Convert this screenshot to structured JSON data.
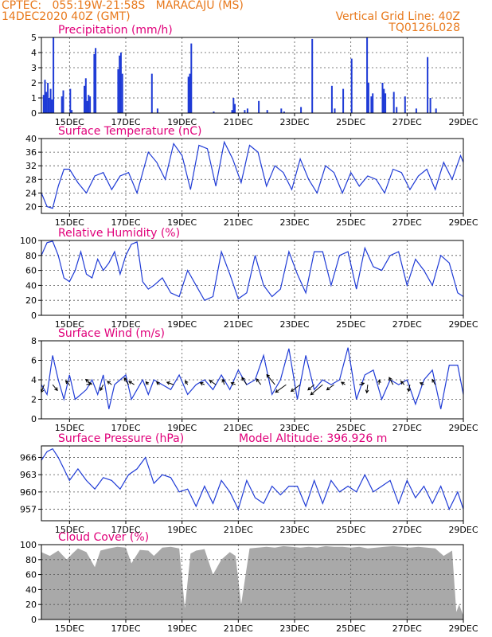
{
  "header": {
    "line1": "CPTEC:   055:19W-21:58S   MARACAJU (MS)",
    "line2": "14DEC2020 40Z (GMT)",
    "right1": "Vertical Grid Line: 40Z",
    "right2": "TQ0126L028"
  },
  "colors": {
    "header": "#e8791c",
    "title": "#e0007a",
    "series": "#1f3bd6",
    "cloud": "#a9a9a9",
    "arrow": "#000000"
  },
  "x_ticks": [
    "15DEC",
    "17DEC",
    "19DEC",
    "21DEC",
    "23DEC",
    "25DEC",
    "27DEC",
    "29DEC"
  ],
  "chart_data": [
    {
      "id": "precip",
      "type": "bar",
      "title": "Precipitation (mm/h)",
      "ylim": [
        0,
        5
      ],
      "yticks": [
        "0",
        "1",
        "2",
        "3",
        "4",
        "5"
      ],
      "x_range_days": [
        14,
        29
      ],
      "x": [
        14.05,
        14.1,
        14.15,
        14.2,
        14.25,
        14.3,
        14.35,
        14.4,
        14.7,
        14.75,
        15.0,
        15.05,
        15.5,
        15.55,
        15.6,
        15.65,
        15.7,
        15.85,
        15.9,
        16.7,
        16.75,
        16.8,
        16.85,
        17.9,
        18.1,
        19.2,
        19.25,
        19.3,
        20.1,
        20.75,
        20.8,
        20.85,
        21.2,
        21.3,
        21.7,
        22.0,
        22.5,
        22.6,
        23.2,
        23.6,
        24.3,
        24.4,
        24.7,
        25.0,
        25.55,
        25.6,
        25.7,
        25.75,
        26.1,
        26.15,
        26.2,
        26.5,
        26.6,
        26.9,
        27.3,
        27.7,
        27.8,
        28.0
      ],
      "values": [
        1.2,
        2.2,
        1.4,
        2.0,
        1.0,
        1.6,
        0.9,
        5.0,
        1.1,
        1.5,
        1.6,
        0.2,
        1.8,
        2.3,
        0.8,
        1.2,
        1.1,
        3.9,
        4.3,
        2.9,
        3.8,
        4.0,
        2.6,
        2.6,
        0.3,
        2.4,
        2.6,
        4.6,
        0.1,
        0.2,
        1.0,
        0.6,
        0.2,
        0.3,
        0.8,
        0.2,
        0.3,
        0.1,
        0.4,
        4.9,
        1.8,
        0.3,
        1.6,
        3.6,
        5.0,
        2.0,
        1.1,
        1.3,
        2.0,
        1.6,
        1.3,
        1.4,
        0.4,
        1.1,
        0.3,
        3.7,
        1.0,
        0.3
      ]
    },
    {
      "id": "temp",
      "type": "line",
      "title": "Surface Temperature (nC)",
      "ylim": [
        18,
        40
      ],
      "yticks": [
        "20",
        "24",
        "28",
        "32",
        "36",
        "40"
      ],
      "ytick_values": [
        20,
        24,
        28,
        32,
        36,
        40
      ],
      "x": [
        14.0,
        14.2,
        14.4,
        14.6,
        14.8,
        15.0,
        15.3,
        15.6,
        15.9,
        16.2,
        16.5,
        16.8,
        17.1,
        17.4,
        17.8,
        18.1,
        18.4,
        18.7,
        19.0,
        19.3,
        19.6,
        19.9,
        20.2,
        20.5,
        20.8,
        21.1,
        21.4,
        21.7,
        22.0,
        22.3,
        22.6,
        22.9,
        23.2,
        23.5,
        23.8,
        24.1,
        24.4,
        24.7,
        25.0,
        25.3,
        25.6,
        25.9,
        26.2,
        26.5,
        26.8,
        27.1,
        27.4,
        27.7,
        28.0,
        28.3,
        28.6,
        28.9,
        29.0
      ],
      "values": [
        24,
        20,
        19.5,
        26,
        31,
        31,
        27,
        24,
        29,
        30,
        25,
        29,
        30,
        24,
        36,
        33,
        28,
        38.5,
        35,
        25,
        38,
        37,
        26,
        39,
        34,
        27,
        38,
        36,
        26,
        32,
        30,
        25,
        34,
        28,
        24,
        32,
        30,
        24,
        30,
        26,
        29,
        28,
        24,
        31,
        30,
        25,
        29,
        31,
        25,
        33,
        28,
        35,
        33
      ]
    },
    {
      "id": "rh",
      "type": "line",
      "title": "Relative Humidity (%)",
      "ylim": [
        0,
        100
      ],
      "yticks": [
        "0",
        "20",
        "40",
        "60",
        "80",
        "100"
      ],
      "ytick_values": [
        0,
        20,
        40,
        60,
        80,
        100
      ],
      "x": [
        14.0,
        14.2,
        14.4,
        14.6,
        14.8,
        15.0,
        15.2,
        15.4,
        15.6,
        15.8,
        16.0,
        16.2,
        16.4,
        16.6,
        16.8,
        17.0,
        17.2,
        17.4,
        17.6,
        17.8,
        18.0,
        18.3,
        18.6,
        18.9,
        19.2,
        19.5,
        19.8,
        20.1,
        20.4,
        20.7,
        21.0,
        21.3,
        21.6,
        21.9,
        22.2,
        22.5,
        22.8,
        23.1,
        23.4,
        23.7,
        24.0,
        24.3,
        24.6,
        24.9,
        25.2,
        25.5,
        25.8,
        26.1,
        26.4,
        26.7,
        27.0,
        27.3,
        27.6,
        27.9,
        28.2,
        28.5,
        28.8,
        29.0
      ],
      "values": [
        80,
        97,
        99,
        80,
        50,
        45,
        60,
        85,
        55,
        50,
        75,
        60,
        70,
        85,
        55,
        80,
        95,
        98,
        45,
        35,
        40,
        50,
        30,
        25,
        60,
        40,
        20,
        25,
        85,
        55,
        22,
        30,
        80,
        40,
        25,
        35,
        85,
        55,
        30,
        85,
        85,
        40,
        80,
        85,
        35,
        90,
        65,
        60,
        80,
        85,
        40,
        75,
        60,
        40,
        80,
        70,
        30,
        25
      ]
    },
    {
      "id": "wind",
      "type": "line",
      "title": "Surface Wind (m/s)",
      "ylim": [
        0,
        8
      ],
      "yticks": [
        "0",
        "2",
        "4",
        "6",
        "8"
      ],
      "ytick_values": [
        0,
        2,
        4,
        6,
        8
      ],
      "x": [
        14.0,
        14.2,
        14.4,
        14.6,
        14.8,
        15.0,
        15.2,
        15.4,
        15.6,
        15.8,
        16.0,
        16.2,
        16.4,
        16.6,
        16.8,
        17.0,
        17.2,
        17.4,
        17.6,
        17.8,
        18.0,
        18.3,
        18.6,
        18.9,
        19.2,
        19.5,
        19.8,
        20.1,
        20.4,
        20.7,
        21.0,
        21.3,
        21.6,
        21.9,
        22.2,
        22.5,
        22.8,
        23.1,
        23.4,
        23.7,
        24.0,
        24.3,
        24.6,
        24.9,
        25.2,
        25.5,
        25.8,
        26.1,
        26.4,
        26.7,
        27.0,
        27.3,
        27.6,
        27.9,
        28.2,
        28.5,
        28.8,
        29.0
      ],
      "values": [
        3.5,
        2.5,
        6.5,
        4,
        2,
        4.5,
        2,
        2.5,
        3,
        4,
        2.5,
        4.5,
        1,
        3.5,
        4,
        4.5,
        2,
        3,
        4,
        2.5,
        4,
        3.5,
        3,
        4.5,
        2.5,
        3.5,
        4,
        3,
        4.5,
        3,
        5,
        3.5,
        4,
        6.5,
        2.5,
        4,
        7.2,
        2,
        6.5,
        3,
        4,
        3.5,
        4,
        7.3,
        2,
        4.5,
        5,
        2,
        4,
        3.5,
        4,
        1.5,
        4,
        5,
        1,
        5.5,
        5.5,
        2.5
      ],
      "arrows": [
        [
          14.1,
          -0.6,
          -1.6
        ],
        [
          14.4,
          1.0,
          -1.2
        ],
        [
          15.0,
          -0.8,
          0.8
        ],
        [
          15.6,
          1.0,
          0.3
        ],
        [
          15.8,
          -1.3,
          1.1
        ],
        [
          16.2,
          -0.6,
          -1.2
        ],
        [
          16.5,
          -0.9,
          0.7
        ],
        [
          17.1,
          -0.9,
          1.4
        ],
        [
          17.3,
          -1.1,
          0.7
        ],
        [
          17.8,
          -0.5,
          0.6
        ],
        [
          18.2,
          -0.6,
          0.6
        ],
        [
          18.7,
          -1.4,
          0.5
        ],
        [
          19.2,
          -0.5,
          0.8
        ],
        [
          19.8,
          -0.9,
          0.4
        ],
        [
          20.2,
          -1.3,
          0.9
        ],
        [
          20.5,
          -0.3,
          1.1
        ],
        [
          20.9,
          -0.9,
          0.4
        ],
        [
          21.3,
          -1.0,
          1.5
        ],
        [
          21.8,
          -0.9,
          1.2
        ],
        [
          22.3,
          -1.7,
          2.1
        ],
        [
          22.7,
          -2.2,
          -1.6
        ],
        [
          23.2,
          -1.9,
          -1.4
        ],
        [
          23.7,
          -1.3,
          -1.1
        ],
        [
          24.0,
          -2.5,
          -2.1
        ],
        [
          24.4,
          -1.5,
          -1.1
        ],
        [
          24.8,
          -0.8,
          0.5
        ],
        [
          25.3,
          1.0,
          0.3
        ],
        [
          25.6,
          -0.2,
          -1.7
        ],
        [
          26.0,
          0.1,
          1.0
        ],
        [
          26.5,
          -0.8,
          1.5
        ],
        [
          26.9,
          -0.7,
          0.7
        ],
        [
          27.1,
          -0.3,
          -1.4
        ],
        [
          27.6,
          -0.8,
          0.4
        ],
        [
          28.0,
          -0.6,
          1.1
        ]
      ]
    },
    {
      "id": "pressure",
      "type": "line",
      "title": "Surface Pressure (hPa)",
      "annotation": "Model Altitude: 396.926 m",
      "ylim": [
        955,
        968
      ],
      "yticks": [
        "957",
        "960",
        "963",
        "966"
      ],
      "ytick_values": [
        957,
        960,
        963,
        966
      ],
      "x": [
        14.0,
        14.2,
        14.4,
        14.6,
        14.8,
        15.0,
        15.3,
        15.6,
        15.9,
        16.2,
        16.5,
        16.8,
        17.1,
        17.4,
        17.7,
        18.0,
        18.3,
        18.6,
        18.9,
        19.2,
        19.5,
        19.8,
        20.1,
        20.4,
        20.7,
        21.0,
        21.3,
        21.6,
        21.9,
        22.2,
        22.5,
        22.8,
        23.1,
        23.4,
        23.7,
        24.0,
        24.3,
        24.6,
        24.9,
        25.2,
        25.5,
        25.8,
        26.1,
        26.4,
        26.7,
        27.0,
        27.3,
        27.6,
        27.9,
        28.2,
        28.5,
        28.8,
        29.0
      ],
      "values": [
        965.5,
        967,
        967.5,
        966,
        964,
        962,
        964,
        962,
        960.5,
        962.5,
        962,
        960.5,
        963,
        964,
        966,
        961.5,
        963,
        962.5,
        960,
        960.5,
        957.5,
        961,
        958,
        962,
        960,
        957,
        962,
        959,
        958,
        961,
        959.5,
        961,
        961,
        957.5,
        962,
        958,
        962,
        960,
        961,
        960,
        963,
        960,
        961,
        962,
        958,
        962,
        959,
        961,
        958,
        961,
        957,
        960,
        957
      ]
    },
    {
      "id": "cloud",
      "type": "area",
      "title": "Cloud Cover (%)",
      "ylim": [
        0,
        100
      ],
      "yticks": [
        "0",
        "20",
        "40",
        "60",
        "80",
        "100"
      ],
      "ytick_values": [
        0,
        20,
        40,
        60,
        80,
        100
      ],
      "x": [
        14.0,
        14.3,
        14.6,
        14.9,
        15.1,
        15.3,
        15.6,
        15.9,
        16.1,
        16.4,
        16.7,
        17.0,
        17.2,
        17.5,
        17.8,
        18.0,
        18.3,
        18.6,
        18.9,
        19.1,
        19.3,
        19.5,
        19.8,
        20.1,
        20.4,
        20.7,
        20.9,
        21.1,
        21.4,
        21.7,
        22.0,
        22.3,
        22.6,
        22.9,
        23.2,
        23.5,
        23.8,
        24.1,
        24.4,
        24.7,
        25.0,
        25.3,
        25.6,
        25.9,
        26.2,
        26.5,
        26.8,
        27.1,
        27.4,
        27.7,
        28.0,
        28.3,
        28.6,
        28.75,
        28.85,
        29.0
      ],
      "values": [
        90,
        85,
        92,
        80,
        88,
        95,
        90,
        70,
        92,
        95,
        97,
        96,
        75,
        93,
        92,
        85,
        96,
        97,
        95,
        15,
        88,
        92,
        94,
        60,
        80,
        90,
        85,
        20,
        95,
        96,
        97,
        96,
        98,
        97,
        96,
        97,
        96,
        98,
        97,
        97,
        96,
        97,
        95,
        96,
        97,
        98,
        97,
        96,
        97,
        96,
        95,
        85,
        92,
        10,
        20,
        5
      ]
    }
  ]
}
